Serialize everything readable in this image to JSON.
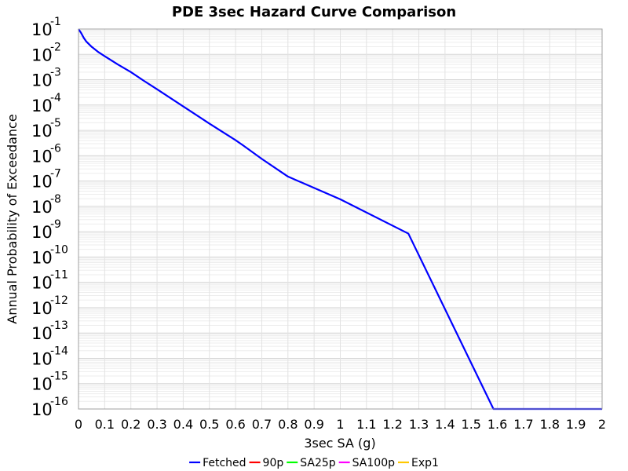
{
  "chart_data": {
    "type": "line",
    "title": "PDE 3sec Hazard Curve Comparison",
    "xlabel": "3sec SA (g)",
    "ylabel": "Annual Probability of Exceedance",
    "xlim": [
      0,
      2
    ],
    "x_ticks": [
      "0",
      "0.1",
      "0.2",
      "0.3",
      "0.4",
      "0.5",
      "0.6",
      "0.7",
      "0.8",
      "0.9",
      "1",
      "1.1",
      "1.2",
      "1.3",
      "1.4",
      "1.5",
      "1.6",
      "1.7",
      "1.8",
      "1.9",
      "2"
    ],
    "y_scale": "log",
    "ylim": [
      1e-16,
      0.1
    ],
    "y_ticks": [
      {
        "base": "10",
        "exp": "-1"
      },
      {
        "base": "10",
        "exp": "-2"
      },
      {
        "base": "10",
        "exp": "-3"
      },
      {
        "base": "10",
        "exp": "-4"
      },
      {
        "base": "10",
        "exp": "-5"
      },
      {
        "base": "10",
        "exp": "-6"
      },
      {
        "base": "10",
        "exp": "-7"
      },
      {
        "base": "10",
        "exp": "-8"
      },
      {
        "base": "10",
        "exp": "-9"
      },
      {
        "base": "10",
        "exp": "-10"
      },
      {
        "base": "10",
        "exp": "-11"
      },
      {
        "base": "10",
        "exp": "-12"
      },
      {
        "base": "10",
        "exp": "-13"
      },
      {
        "base": "10",
        "exp": "-14"
      },
      {
        "base": "10",
        "exp": "-15"
      },
      {
        "base": "10",
        "exp": "-16"
      }
    ],
    "grid": true,
    "legend_position": "bottom",
    "series": [
      {
        "name": "Fetched",
        "color": "#0000ff",
        "x": [
          0.0,
          0.01,
          0.02,
          0.03,
          0.05,
          0.075,
          0.1,
          0.15,
          0.2,
          0.25,
          0.3,
          0.4,
          0.5,
          0.6,
          0.63,
          0.7,
          0.8,
          1.0,
          1.26,
          1.585,
          2.0
        ],
        "y": [
          0.1,
          0.07,
          0.045,
          0.032,
          0.02,
          0.0125,
          0.0085,
          0.004,
          0.002,
          0.0009,
          0.00042,
          8.82e-05,
          1.85e-05,
          4.1e-06,
          2.5e-06,
          7.5e-07,
          1.5e-07,
          1.9e-08,
          8.4e-10,
          1e-16,
          1e-16
        ]
      },
      {
        "name": "90p",
        "color": "#ff0000",
        "x": [],
        "y": []
      },
      {
        "name": "SA25p",
        "color": "#00ff00",
        "x": [],
        "y": []
      },
      {
        "name": "SA100p",
        "color": "#ff00ff",
        "x": [],
        "y": []
      },
      {
        "name": "Exp1",
        "color": "#ffc800",
        "x": [],
        "y": []
      }
    ]
  }
}
